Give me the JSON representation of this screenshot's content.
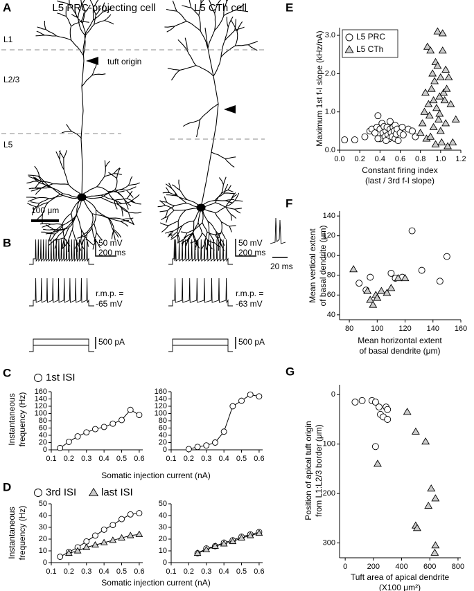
{
  "panels": {
    "letters": [
      "A",
      "B",
      "C",
      "D",
      "E",
      "F",
      "G"
    ],
    "A": {
      "titles": [
        "L5 PRC-projecting cell",
        "L5 CTh cell"
      ],
      "layers": [
        "L1",
        "L2/3",
        "L5"
      ],
      "annotation": "tuft origin",
      "scale_bar": "100 μm"
    },
    "B": {
      "left": {
        "voltage_scale": "50 mV",
        "time_scale": "200 ms",
        "rmp_label": "r.m.p. =",
        "rmp": "-65 mV",
        "current_scale": "500 pA"
      },
      "right": {
        "voltage_scale": "50 mV",
        "time_scale": "200 ms",
        "rmp_label": "r.m.p. =",
        "rmp": "-63 mV",
        "current_scale": "500 pA",
        "marker": "*"
      },
      "inset_time_scale": "20 ms"
    }
  },
  "chart_data": [
    {
      "type": "line",
      "xlim": [
        0.1,
        0.62
      ],
      "xticks": [
        0.1,
        0.2,
        0.3,
        0.4,
        0.5,
        0.6
      ],
      "ylim": [
        0,
        160
      ],
      "yticks": [
        0,
        20,
        40,
        60,
        80,
        100,
        120,
        140,
        160
      ],
      "ylabel": [
        "Instantaneous",
        "frequency (Hz)"
      ],
      "xlabel": "Somatic injection current (nA)",
      "series": [
        {
          "name": "1st ISI",
          "color": "#000000",
          "marker": "circle",
          "x": [
            0.15,
            0.2,
            0.25,
            0.3,
            0.35,
            0.4,
            0.45,
            0.5,
            0.55,
            0.6
          ],
          "values": [
            5,
            22,
            37,
            48,
            57,
            63,
            72,
            82,
            110,
            96
          ]
        }
      ]
    },
    {
      "type": "line",
      "xlim": [
        0.1,
        0.62
      ],
      "xticks": [
        0.1,
        0.2,
        0.3,
        0.4,
        0.5,
        0.6
      ],
      "ylim": [
        0,
        160
      ],
      "yticks": [
        0,
        20,
        40,
        60,
        80,
        100,
        120,
        140,
        160
      ],
      "series": [
        {
          "color": "#000000",
          "marker": "circle",
          "x": [
            0.2,
            0.25,
            0.3,
            0.35,
            0.4,
            0.45,
            0.5,
            0.55,
            0.6
          ],
          "values": [
            2,
            8,
            12,
            20,
            50,
            120,
            135,
            152,
            147
          ]
        }
      ]
    },
    {
      "type": "line",
      "xlim": [
        0.1,
        0.62
      ],
      "xticks": [
        0.1,
        0.2,
        0.3,
        0.4,
        0.5,
        0.6
      ],
      "ylim": [
        0,
        50
      ],
      "yticks": [
        0,
        10,
        20,
        30,
        40,
        50
      ],
      "ylabel": [
        "Instantaneous",
        "frequency (Hz)"
      ],
      "xlabel": "Somatic injection current (nA)",
      "series": [
        {
          "name": "3rd ISI",
          "color": "#000000",
          "marker": "circle",
          "x": [
            0.15,
            0.2,
            0.25,
            0.3,
            0.35,
            0.4,
            0.45,
            0.5,
            0.55,
            0.6
          ],
          "values": [
            5,
            9,
            13,
            18,
            23,
            28,
            32,
            37,
            41,
            42
          ]
        },
        {
          "name": "last ISI",
          "color": "#000000",
          "marker": "triangle",
          "x": [
            0.2,
            0.25,
            0.3,
            0.35,
            0.4,
            0.45,
            0.5,
            0.55,
            0.6
          ],
          "values": [
            8,
            10,
            13,
            15,
            17,
            19,
            21,
            23,
            24
          ]
        }
      ]
    },
    {
      "type": "line",
      "xlim": [
        0.1,
        0.62
      ],
      "xticks": [
        0.1,
        0.2,
        0.3,
        0.4,
        0.5,
        0.6
      ],
      "ylim": [
        0,
        50
      ],
      "yticks": [
        0,
        10,
        20,
        30,
        40,
        50
      ],
      "series": [
        {
          "color": "#000000",
          "marker": "circle",
          "x": [
            0.25,
            0.3,
            0.35,
            0.4,
            0.45,
            0.5,
            0.55,
            0.6
          ],
          "values": [
            8,
            12,
            14,
            17,
            19,
            22,
            24,
            26
          ]
        },
        {
          "color": "#000000",
          "marker": "triangle",
          "x": [
            0.25,
            0.3,
            0.35,
            0.4,
            0.45,
            0.5,
            0.55,
            0.6
          ],
          "values": [
            8,
            11,
            14,
            16,
            18,
            21,
            23,
            25
          ]
        }
      ]
    },
    {
      "type": "scatter",
      "xlim": [
        0,
        1.2
      ],
      "xticks": [
        {
          "value": 0,
          "label": "0.0"
        },
        0.2,
        0.4,
        0.6,
        0.8,
        {
          "value": 1,
          "label": "1.0"
        },
        1.2
      ],
      "ylim": [
        0,
        3.2
      ],
      "yticks": [
        {
          "value": 0,
          "label": "0.0"
        },
        {
          "value": 1,
          "label": "1.0"
        },
        {
          "value": 2,
          "label": "2.0"
        },
        {
          "value": 3,
          "label": "3.0"
        }
      ],
      "ylabel": [
        "Maximum 1st f-I slope (kHz/nA)"
      ],
      "xlabel": [
        "Constant firing index",
        "(last / 3rd f-I slope)"
      ],
      "series": [
        {
          "name": "L5 PRC",
          "color": "#000000",
          "marker": "circle",
          "x": [
            0.05,
            0.15,
            0.25,
            0.3,
            0.32,
            0.35,
            0.37,
            0.38,
            0.4,
            0.4,
            0.42,
            0.43,
            0.44,
            0.45,
            0.46,
            0.47,
            0.48,
            0.49,
            0.5,
            0.5,
            0.51,
            0.52,
            0.53,
            0.54,
            0.55,
            0.55,
            0.56,
            0.57,
            0.58,
            0.6,
            0.62,
            0.63,
            0.68,
            0.72,
            0.75,
            0.38,
            0.46
          ],
          "values": [
            0.27,
            0.27,
            0.35,
            0.5,
            0.55,
            0.45,
            0.6,
            0.9,
            0.3,
            0.55,
            0.7,
            0.45,
            0.62,
            0.35,
            0.5,
            0.6,
            0.4,
            0.3,
            0.55,
            0.75,
            0.45,
            0.35,
            0.6,
            0.5,
            0.3,
            0.65,
            0.42,
            0.55,
            0.25,
            0.45,
            0.6,
            0.4,
            0.55,
            0.5,
            0.35,
            0.3,
            0.25
          ]
        },
        {
          "name": "L5 CTh",
          "color": "#000000",
          "marker": "triangle",
          "x": [
            0.8,
            0.82,
            0.84,
            0.85,
            0.86,
            0.87,
            0.88,
            0.89,
            0.9,
            0.9,
            0.91,
            0.92,
            0.93,
            0.94,
            0.95,
            0.95,
            0.96,
            0.97,
            0.97,
            0.98,
            0.99,
            1.0,
            1.0,
            1.01,
            1.02,
            1.03,
            1.04,
            1.05,
            1.05,
            1.06,
            1.07,
            1.08,
            1.1,
            1.12,
            1.15,
            0.99,
            1.02,
            0.93
          ],
          "values": [
            0.45,
            0.7,
            1.0,
            1.5,
            0.3,
            2.7,
            1.2,
            0.9,
            2.6,
            0.35,
            1.6,
            2.0,
            0.6,
            1.8,
            2.3,
            0.15,
            1.1,
            2.2,
            3.1,
            0.8,
            1.4,
            0.5,
            1.9,
            0.2,
            3.05,
            1.5,
            1.3,
            2.1,
            0.7,
            1.6,
            0.1,
            1.9,
            1.2,
            0.2,
            0.8,
            0.95,
            2.6,
            1.3
          ]
        }
      ]
    },
    {
      "type": "scatter",
      "xlim": [
        73,
        160
      ],
      "xticks": [
        80,
        100,
        120,
        140,
        160
      ],
      "ylim": [
        35,
        145
      ],
      "yticks": [
        40,
        60,
        80,
        100,
        120,
        140
      ],
      "ylabel": [
        "Mean vertical extent",
        "of basal dendrite (μm)"
      ],
      "xlabel": [
        "Mean horizontal extent",
        "of basal dendrite (μm)"
      ],
      "series": [
        {
          "color": "#000000",
          "marker": "circle",
          "x": [
            87,
            92,
            95,
            110,
            113,
            118,
            125,
            132,
            145,
            150
          ],
          "values": [
            72,
            65,
            78,
            82,
            77,
            78,
            125,
            85,
            74,
            99
          ]
        },
        {
          "color": "#000000",
          "marker": "triangle",
          "x": [
            83,
            93,
            95,
            97,
            99,
            100,
            103,
            107,
            110,
            115,
            120
          ],
          "values": [
            86,
            64,
            55,
            50,
            60,
            57,
            64,
            62,
            67,
            77,
            77
          ]
        }
      ]
    },
    {
      "type": "scatter",
      "xlim": [
        -40,
        820
      ],
      "xticks": [
        0,
        200,
        400,
        600,
        800
      ],
      "ylim": [
        -20,
        330
      ],
      "y_inverted": true,
      "yticks": [
        0,
        100,
        200,
        300
      ],
      "ylabel": [
        "Position of apical tuft origin",
        "from L1:L2/3 border (μm)"
      ],
      "xlabel": [
        "Tuft area of apical dendrite",
        "(X100 μm²)"
      ],
      "series": [
        {
          "color": "#000000",
          "marker": "circle",
          "x": [
            70,
            120,
            190,
            215,
            240,
            250,
            270,
            290,
            300,
            300,
            215
          ],
          "values": [
            15,
            12,
            12,
            15,
            25,
            40,
            45,
            25,
            50,
            30,
            105
          ]
        },
        {
          "color": "#000000",
          "marker": "triangle",
          "x": [
            230,
            440,
            500,
            570,
            590,
            610,
            640,
            500,
            510,
            640,
            635
          ],
          "values": [
            140,
            35,
            75,
            95,
            225,
            190,
            210,
            265,
            270,
            305,
            320
          ]
        }
      ]
    }
  ]
}
